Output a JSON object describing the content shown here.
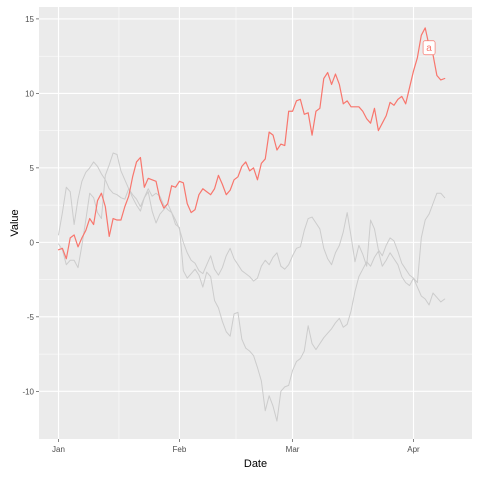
{
  "chart_data": {
    "type": "line",
    "xlabel": "Date",
    "ylabel": "Value",
    "x_tick_labels": [
      "Jan",
      "Feb",
      "Mar",
      "Apr"
    ],
    "x_tick_dates": [
      "2000-01-01",
      "2000-02-01",
      "2000-03-01",
      "2000-04-01"
    ],
    "x_range": [
      "1999-12-27",
      "2000-04-16"
    ],
    "y_ticks": [
      -10,
      -5,
      0,
      5,
      10,
      15
    ],
    "y_tick_labels": [
      "-10",
      "-5",
      "0",
      "5",
      "10",
      "15"
    ],
    "ylim": [
      -13.2,
      15.8
    ],
    "grid": true,
    "x_start_date": "2000-01-01",
    "x_step_days": 1,
    "series": [
      {
        "highlighted": true,
        "color": "#f8766d",
        "label": "a",
        "values": [
          -0.5,
          -0.4,
          -1.1,
          0.3,
          0.5,
          -0.3,
          0.3,
          0.8,
          1.6,
          1.2,
          2.8,
          3.3,
          2.4,
          0.4,
          1.6,
          1.5,
          1.5,
          2.4,
          3.1,
          4.4,
          5.4,
          5.7,
          3.7,
          4.3,
          4.2,
          4.1,
          2.9,
          2.3,
          2.6,
          3.8,
          3.7,
          4.1,
          4.0,
          2.6,
          2.0,
          2.2,
          3.2,
          3.6,
          3.4,
          3.2,
          3.6,
          4.5,
          3.9,
          3.2,
          3.5,
          4.2,
          4.4,
          5.1,
          5.4,
          4.8,
          5.0,
          4.2,
          5.3,
          5.6,
          7.4,
          7.2,
          6.2,
          6.6,
          6.5,
          8.8,
          8.8,
          9.5,
          9.6,
          8.6,
          8.7,
          7.2,
          8.8,
          9.0,
          11.0,
          11.4,
          10.6,
          11.3,
          10.6,
          9.3,
          9.5,
          9.1,
          9.1,
          9.1,
          8.8,
          8.3,
          8.0,
          9.0,
          7.5,
          8.0,
          8.5,
          9.4,
          9.2,
          9.6,
          9.8,
          9.3,
          10.4,
          11.5,
          12.4,
          13.9,
          14.4,
          13.2,
          12.6,
          11.2,
          10.9,
          11.0
        ]
      },
      {
        "highlighted": false,
        "color": "#cccccc",
        "values": [
          -0.1,
          -0.5,
          -1.5,
          -1.2,
          -1.2,
          -1.7,
          -0.2,
          1.5,
          3.3,
          3.0,
          2.0,
          1.6,
          4.5,
          5.2,
          6.0,
          5.9,
          4.8,
          4.2,
          3.6,
          3.0,
          2.5,
          2.1,
          3.0,
          3.6,
          3.1,
          3.3,
          3.1,
          2.5,
          2.2,
          2.0,
          1.2,
          1.0,
          -1.9,
          -2.4,
          -2.1,
          -1.8,
          -2.2,
          -3.0,
          -2.0,
          -2.3,
          -3.9,
          -4.4,
          -5.3,
          -6.0,
          -6.3,
          -4.8,
          -4.7,
          -6.5,
          -7.1,
          -7.3,
          -7.6,
          -8.4,
          -9.3,
          -11.3,
          -10.3,
          -11.0,
          -12.0,
          -10.0,
          -9.7,
          -9.6,
          -8.6,
          -8.0,
          -7.8,
          -7.3,
          -5.6,
          -6.8,
          -7.2,
          -6.8,
          -6.4,
          -6.1,
          -5.8,
          -5.4,
          -5.1,
          -5.7,
          -5.5,
          -4.6,
          -3.3,
          -2.3,
          -1.8,
          -1.3,
          -1.6,
          -1.0,
          -0.6,
          -1.6,
          -1.2,
          -0.7,
          -1.1,
          -1.5,
          -2.3,
          -2.7,
          -2.9,
          -2.4,
          -3.0,
          -3.6,
          -3.8,
          -4.2,
          -3.4,
          -3.7,
          -4.0,
          -3.8
        ]
      },
      {
        "highlighted": false,
        "color": "#cccccc",
        "values": [
          0.5,
          2.0,
          3.7,
          3.4,
          1.2,
          2.9,
          4.1,
          4.7,
          5.0,
          5.4,
          5.1,
          4.6,
          4.2,
          3.6,
          3.3,
          3.2,
          3.0,
          2.9,
          3.6,
          3.2,
          2.9,
          2.4,
          3.0,
          3.4,
          2.1,
          1.3,
          1.9,
          2.2,
          2.6,
          2.0,
          1.5,
          0.9,
          0.0,
          -0.7,
          -1.2,
          -1.4,
          -1.9,
          -2.1,
          -1.5,
          -0.9,
          -1.8,
          -2.2,
          -1.7,
          -0.9,
          -0.4,
          -1.1,
          -1.5,
          -1.9,
          -2.1,
          -2.3,
          -2.6,
          -2.4,
          -1.6,
          -1.2,
          -1.5,
          -1.0,
          -0.7,
          -1.6,
          -1.8,
          -1.5,
          -0.9,
          -0.4,
          -0.3,
          0.8,
          1.6,
          1.7,
          1.3,
          0.9,
          -0.4,
          -1.1,
          -1.5,
          -0.7,
          -0.2,
          0.7,
          2.0,
          0.4,
          -1.3,
          -0.2,
          -0.8,
          -1.6,
          1.5,
          0.9,
          -0.5,
          -0.9,
          -0.2,
          0.3,
          0.1,
          -0.6,
          -1.4,
          -1.8,
          -2.2,
          -2.4,
          -2.7,
          0.3,
          1.5,
          1.9,
          2.6,
          3.3,
          3.3,
          3.0
        ]
      }
    ]
  }
}
